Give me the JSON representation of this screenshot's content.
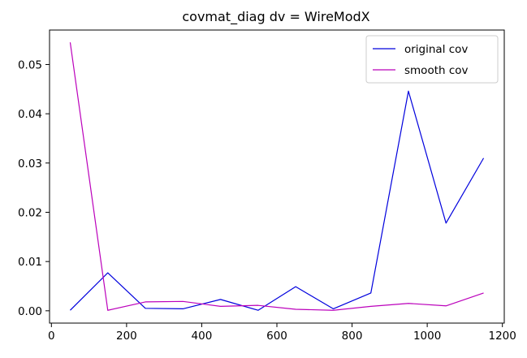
{
  "chart_data": {
    "type": "line",
    "title": "covmat_diag dv = WireModX",
    "xlabel": "",
    "ylabel": "",
    "xlim": [
      -5,
      1205
    ],
    "ylim": [
      -0.0025,
      0.057
    ],
    "x_ticks": [
      0,
      200,
      400,
      600,
      800,
      1000,
      1200
    ],
    "x_tick_labels": [
      "0",
      "200",
      "400",
      "600",
      "800",
      "1000",
      "1200"
    ],
    "y_ticks": [
      0.0,
      0.01,
      0.02,
      0.03,
      0.04,
      0.05
    ],
    "y_tick_labels": [
      "0.00",
      "0.01",
      "0.02",
      "0.03",
      "0.04",
      "0.05"
    ],
    "grid": false,
    "legend_position": "top-right",
    "x": [
      50,
      150,
      250,
      350,
      450,
      550,
      650,
      750,
      850,
      950,
      1050,
      1150
    ],
    "series": [
      {
        "name": "original cov",
        "color": "#0000dd",
        "values": [
          0.0001,
          0.0077,
          0.0005,
          0.0004,
          0.0023,
          0.0001,
          0.0049,
          0.0004,
          0.0036,
          0.0446,
          0.0178,
          0.031
        ]
      },
      {
        "name": "smooth cov",
        "color": "#bb00bb",
        "values": [
          0.0545,
          0.0001,
          0.0018,
          0.0019,
          0.0009,
          0.0011,
          0.0003,
          0.0001,
          0.0009,
          0.0015,
          0.001,
          0.0036
        ]
      }
    ]
  }
}
